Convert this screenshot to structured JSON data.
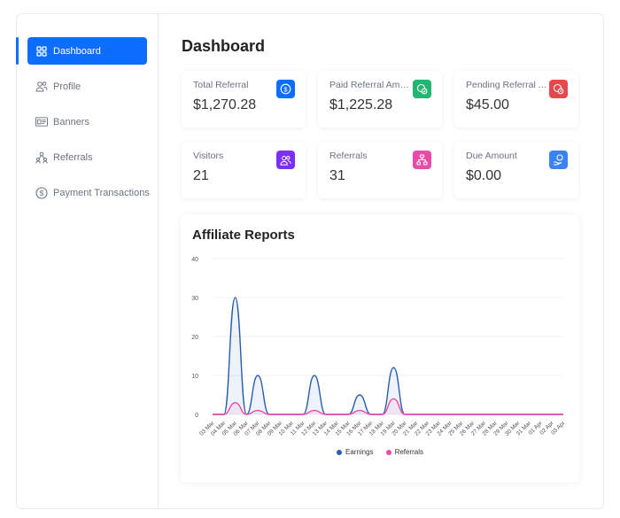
{
  "sidebar": {
    "items": [
      {
        "label": "Dashboard",
        "icon": "grid-icon"
      },
      {
        "label": "Profile",
        "icon": "users-icon"
      },
      {
        "label": "Banners",
        "icon": "banner-icon"
      },
      {
        "label": "Referrals",
        "icon": "referral-icon"
      },
      {
        "label": "Payment Transactions",
        "icon": "dollar-icon"
      }
    ]
  },
  "main": {
    "title": "Dashboard",
    "cards": [
      {
        "label": "Total Referral",
        "value": "$1,270.28",
        "color": "#0d6efd",
        "icon": "dollar-icon"
      },
      {
        "label": "Paid Referral Amount",
        "value": "$1,225.28",
        "color": "#22b573",
        "icon": "money-check-icon"
      },
      {
        "label": "Pending Referral Amount",
        "value": "$45.00",
        "color": "#e5484d",
        "icon": "money-pending-icon"
      },
      {
        "label": "Visitors",
        "value": "21",
        "color": "#7b2ff7",
        "icon": "users-icon"
      },
      {
        "label": "Referrals",
        "value": "31",
        "color": "#ec4aa8",
        "icon": "network-icon"
      },
      {
        "label": "Due Amount",
        "value": "$0.00",
        "color": "#3b82f6",
        "icon": "hand-money-icon"
      }
    ]
  },
  "chart": {
    "title": "Affiliate Reports",
    "legend": {
      "earnings": "Earnings",
      "referrals": "Referrals"
    }
  },
  "chart_data": {
    "type": "area",
    "title": "Affiliate Reports",
    "x": [
      "03 Mar",
      "04 Mar",
      "05 Mar",
      "06 Mar",
      "07 Mar",
      "08 Mar",
      "09 Mar",
      "10 Mar",
      "11 Mar",
      "12 Mar",
      "13 Mar",
      "14 Mar",
      "15 Mar",
      "16 Mar",
      "17 Mar",
      "18 Mar",
      "19 Mar",
      "20 Mar",
      "21 Mar",
      "22 Mar",
      "23 Mar",
      "24 Mar",
      "25 Mar",
      "26 Mar",
      "27 Mar",
      "28 Mar",
      "29 Mar",
      "30 Mar",
      "31 Mar",
      "01 Apr",
      "02 Apr",
      "03 Apr"
    ],
    "ylim": [
      0,
      40
    ],
    "yticks": [
      0,
      10,
      20,
      30,
      40
    ],
    "grid": true,
    "legend_position": "bottom",
    "series": [
      {
        "name": "Earnings",
        "color": "#2a5db0",
        "values": [
          0,
          0,
          30,
          0,
          10,
          0,
          0,
          0,
          0,
          10,
          0,
          0,
          0,
          5,
          0,
          0,
          12,
          0,
          0,
          0,
          0,
          0,
          0,
          0,
          0,
          0,
          0,
          0,
          0,
          0,
          0,
          0
        ]
      },
      {
        "name": "Referrals",
        "color": "#ec4aa8",
        "values": [
          0,
          0,
          3,
          0,
          1,
          0,
          0,
          0,
          0,
          1,
          0,
          0,
          0,
          1,
          0,
          0,
          4,
          0,
          0,
          0,
          0,
          0,
          0,
          0,
          0,
          0,
          0,
          0,
          0,
          0,
          0,
          0
        ]
      }
    ]
  }
}
